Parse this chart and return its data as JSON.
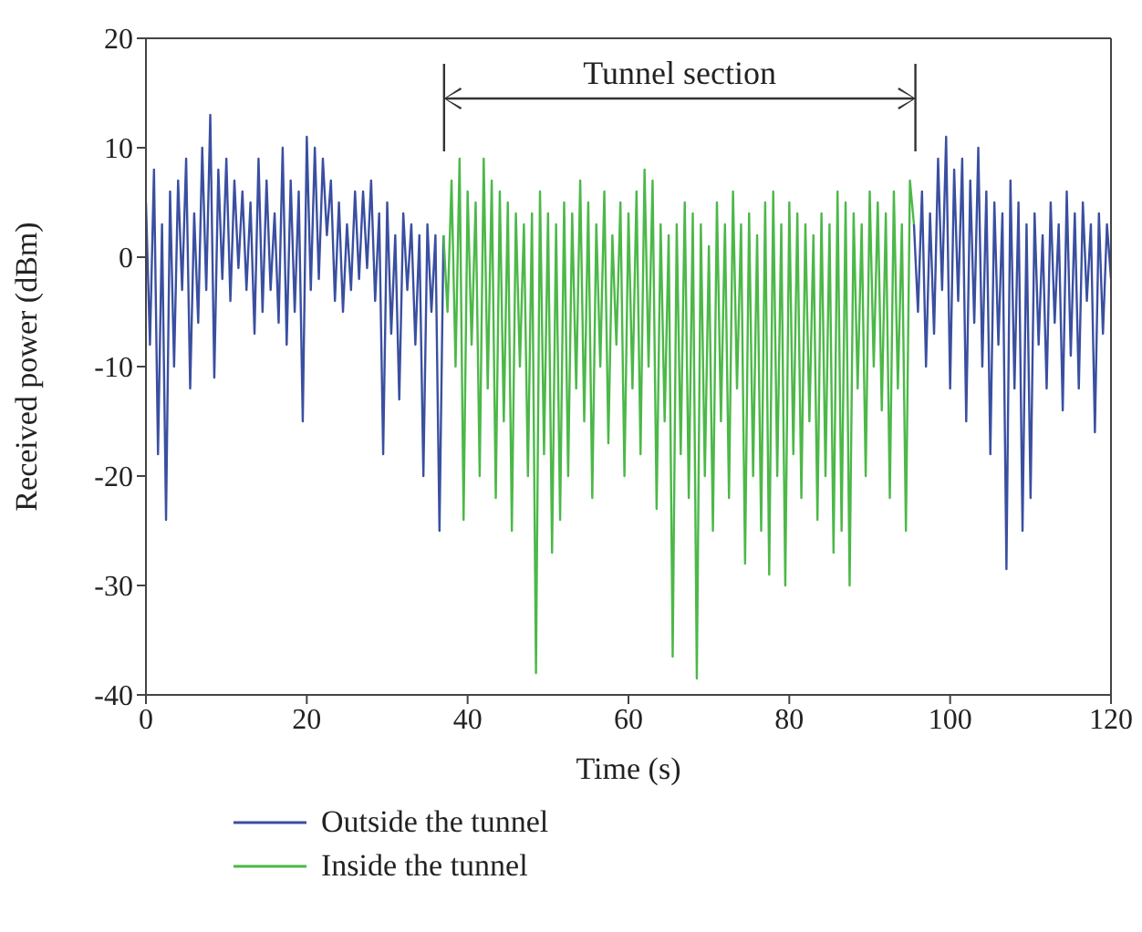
{
  "chart_data": {
    "type": "line",
    "xlabel": "Time (s)",
    "ylabel": "Received power (dBm)",
    "xlim": [
      0,
      120
    ],
    "xticks": [
      0,
      20,
      40,
      60,
      80,
      100,
      120
    ],
    "ylim": [
      -40,
      20
    ],
    "yticks": [
      -40,
      -30,
      -20,
      -10,
      0,
      10,
      20
    ],
    "legend": "bottom",
    "annotations": [
      "Tunnel section"
    ],
    "series": [
      {
        "name": "Outside the tunnel",
        "color": "#3a4fa0",
        "x": [
          0,
          0.5,
          1,
          1.5,
          2,
          2.5,
          3,
          3.5,
          4,
          4.5,
          5,
          5.5,
          6,
          6.5,
          7,
          7.5,
          8,
          8.5,
          9,
          9.5,
          10,
          10.5,
          11,
          11.5,
          12,
          12.5,
          13,
          13.5,
          14,
          14.5,
          15,
          15.5,
          16,
          16.5,
          17,
          17.5,
          18,
          18.5,
          19,
          19.5,
          20,
          20.5,
          21,
          21.5,
          22,
          22.5,
          23,
          23.5,
          24,
          24.5,
          25,
          25.5,
          26,
          26.5,
          27,
          27.5,
          28,
          28.5,
          29,
          29.5,
          30,
          30.5,
          31,
          31.5,
          32,
          32.5,
          33,
          33.5,
          34,
          34.5,
          35,
          35.5,
          36,
          36.5,
          37,
          66,
          95.5,
          96,
          96.5,
          97,
          97.5,
          98,
          98.5,
          99,
          99.5,
          100,
          100.5,
          101,
          101.5,
          102,
          102.5,
          103,
          103.5,
          104,
          104.5,
          105,
          105.5,
          106,
          106.5,
          107,
          107.5,
          108,
          108.5,
          109,
          109.5,
          110,
          110.5,
          111,
          111.5,
          112,
          112.5,
          113,
          113.5,
          114,
          114.5,
          115,
          115.5,
          116,
          116.5,
          117,
          117.5,
          118,
          118.5,
          119,
          119.5,
          120
        ],
        "values": [
          5,
          -8,
          8,
          -18,
          3,
          -24,
          6,
          -10,
          7,
          -3,
          9,
          -12,
          4,
          -6,
          10,
          -3,
          13,
          -11,
          8,
          -2,
          9,
          -4,
          7,
          -1,
          6,
          -3,
          5,
          -7,
          9,
          -5,
          7,
          -3,
          4,
          -6,
          10,
          -8,
          7,
          -5,
          6,
          -15,
          11,
          -3,
          10,
          -2,
          9,
          2,
          7,
          -4,
          5,
          -5,
          3,
          -3,
          6,
          -2,
          6,
          -1,
          7,
          -4,
          4,
          -18,
          5,
          -7,
          2,
          -13,
          4,
          -3,
          3,
          -8,
          2,
          -20,
          3,
          -5,
          2,
          -25,
          2,
          null,
          3,
          -5,
          6,
          -10,
          4,
          -7,
          9,
          -3,
          11,
          -12,
          8,
          -4,
          9,
          -15,
          7,
          -6,
          10,
          -10,
          6,
          -18,
          5,
          -8,
          4,
          -28.5,
          7,
          -12,
          5,
          -25,
          3,
          -22,
          4,
          -8,
          2,
          -12,
          5,
          -6,
          3,
          -14,
          6,
          -9,
          4,
          -12,
          5,
          -4,
          3,
          -16,
          4,
          -7,
          3,
          -2
        ]
      },
      {
        "name": "Inside the tunnel",
        "color": "#4cb848",
        "x": [
          37,
          37.5,
          38,
          38.5,
          39,
          39.5,
          40,
          40.5,
          41,
          41.5,
          42,
          42.5,
          43,
          43.5,
          44,
          44.5,
          45,
          45.5,
          46,
          46.5,
          47,
          47.5,
          48,
          48.5,
          49,
          49.5,
          50,
          50.5,
          51,
          51.5,
          52,
          52.5,
          53,
          53.5,
          54,
          54.5,
          55,
          55.5,
          56,
          56.5,
          57,
          57.5,
          58,
          58.5,
          59,
          59.5,
          60,
          60.5,
          61,
          61.5,
          62,
          62.5,
          63,
          63.5,
          64,
          64.5,
          65,
          65.5,
          66,
          66.5,
          67,
          67.5,
          68,
          68.5,
          69,
          69.5,
          70,
          70.5,
          71,
          71.5,
          72,
          72.5,
          73,
          73.5,
          74,
          74.5,
          75,
          75.5,
          76,
          76.5,
          77,
          77.5,
          78,
          78.5,
          79,
          79.5,
          80,
          80.5,
          81,
          81.5,
          82,
          82.5,
          83,
          83.5,
          84,
          84.5,
          85,
          85.5,
          86,
          86.5,
          87,
          87.5,
          88,
          88.5,
          89,
          89.5,
          90,
          90.5,
          91,
          91.5,
          92,
          92.5,
          93,
          93.5,
          94,
          94.5,
          95,
          95.5
        ],
        "values": [
          2,
          -5,
          7,
          -10,
          9,
          -24,
          6,
          -8,
          5,
          -20,
          9,
          -12,
          7,
          -22,
          6,
          -15,
          5,
          -25,
          4,
          -10,
          3,
          -20,
          4,
          -38,
          6,
          -18,
          4,
          -27,
          3,
          -24,
          5,
          -20,
          4,
          -12,
          7,
          -15,
          5,
          -22,
          3,
          -10,
          6,
          -17,
          2,
          -8,
          5,
          -20,
          4,
          -12,
          6,
          -18,
          8,
          -10,
          7,
          -23,
          3,
          -15,
          2,
          -36.5,
          3,
          -18,
          5,
          -22,
          4,
          -38.5,
          3,
          -20,
          1,
          -25,
          5,
          -15,
          3,
          -22,
          6,
          -12,
          3,
          -28,
          4,
          -20,
          2,
          -25,
          5,
          -29,
          6,
          -20,
          3,
          -30,
          5,
          -18,
          4,
          -22,
          3,
          -15,
          2,
          -24,
          4,
          -20,
          3,
          -27,
          6,
          -25,
          5,
          -30,
          4,
          -12,
          3,
          -20,
          6,
          -10,
          5,
          -14,
          4,
          -22,
          6,
          -12,
          3,
          -25,
          7,
          3
        ]
      }
    ]
  }
}
